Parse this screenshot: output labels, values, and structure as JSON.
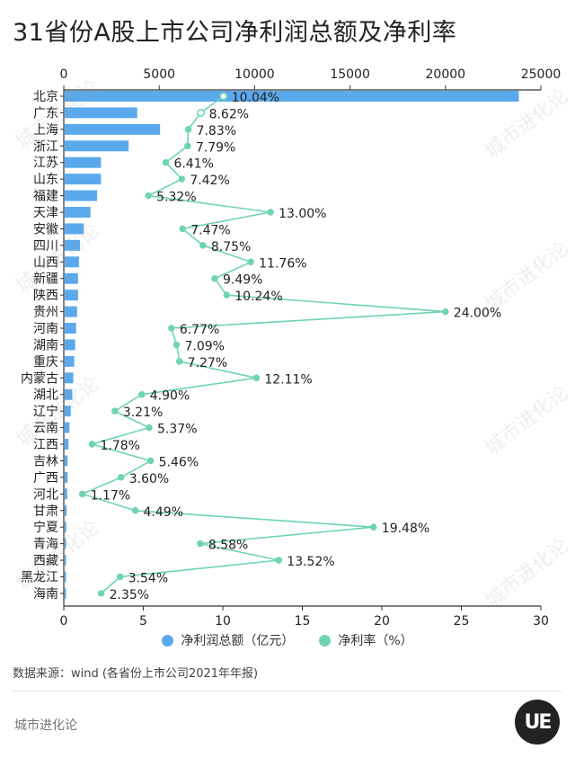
{
  "title": "31省份A股上市公司净利润总额及净利率",
  "legend": {
    "profit_label": "净利润总额（亿元）",
    "margin_label": "净利率（%）"
  },
  "source": "数据来源：wind (各省份上市公司2021年年报)",
  "brand": {
    "name": "城市进化论",
    "logo_text": "UE",
    "watermark": "城市进化论"
  },
  "colors": {
    "bar": "#5aa9ec",
    "line": "#6fd4b0",
    "axis": "#333333",
    "text": "#222222"
  },
  "chart_data": {
    "type": "bar",
    "orientation": "horizontal",
    "categories": [
      "北京",
      "广东",
      "上海",
      "浙江",
      "江苏",
      "山东",
      "福建",
      "天津",
      "安徽",
      "四川",
      "山西",
      "新疆",
      "陕西",
      "贵州",
      "河南",
      "湖南",
      "重庆",
      "内蒙古",
      "湖北",
      "辽宁",
      "云南",
      "江西",
      "吉林",
      "广西",
      "河北",
      "甘肃",
      "宁夏",
      "青海",
      "西藏",
      "黑龙江",
      "海南"
    ],
    "series": [
      {
        "name": "净利润总额（亿元）",
        "axis": "top",
        "values": [
          23800,
          3800,
          5000,
          3350,
          1900,
          1900,
          1700,
          1350,
          1000,
          800,
          750,
          700,
          700,
          650,
          600,
          550,
          500,
          450,
          400,
          320,
          250,
          200,
          150,
          150,
          130,
          100,
          80,
          60,
          60,
          50,
          40
        ]
      },
      {
        "name": "净利率（%）",
        "axis": "bottom",
        "type": "line",
        "values": [
          10.04,
          8.62,
          7.83,
          7.79,
          6.41,
          7.42,
          5.32,
          13.0,
          7.47,
          8.75,
          11.76,
          9.49,
          10.24,
          24.0,
          6.77,
          7.09,
          7.27,
          12.11,
          4.9,
          3.21,
          5.37,
          1.78,
          5.46,
          3.6,
          1.17,
          4.49,
          19.48,
          8.58,
          13.52,
          3.54,
          2.35
        ],
        "labels": [
          "10.04%",
          "8.62%",
          "7.83%",
          "7.79%",
          "6.41%",
          "7.42%",
          "5.32%",
          "13.00%",
          "7.47%",
          "8.75%",
          "11.76%",
          "9.49%",
          "10.24%",
          "24.00%",
          "6.77%",
          "7.09%",
          "7.27%",
          "12.11%",
          "4.90%",
          "3.21%",
          "5.37%",
          "1.78%",
          "5.46%",
          "3.60%",
          "1.17%",
          "4.49%",
          "19.48%",
          "8.58%",
          "13.52%",
          "3.54%",
          "2.35%"
        ]
      }
    ],
    "top_axis": {
      "range": [
        0,
        25000
      ],
      "ticks": [
        "0",
        "5000",
        "10000",
        "15000",
        "20000",
        "25000"
      ]
    },
    "bottom_axis": {
      "range": [
        0,
        30
      ],
      "ticks": [
        "0",
        "5",
        "10",
        "15",
        "20",
        "25",
        "30"
      ]
    },
    "grid": false,
    "legend_position": "bottom"
  }
}
